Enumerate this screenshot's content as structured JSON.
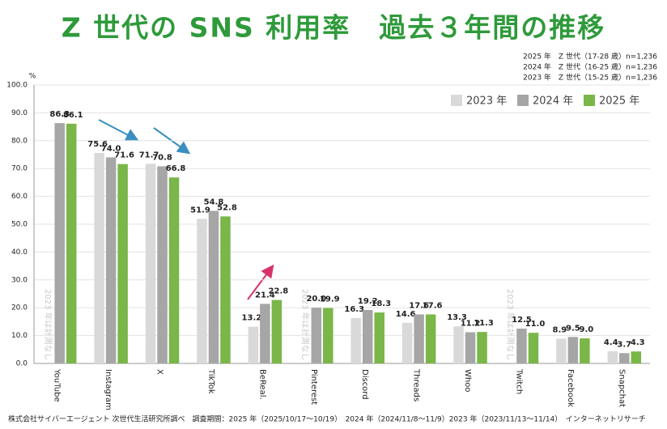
{
  "chart_data": {
    "type": "bar",
    "title": "Z 世代の SNS 利用率　過去３年間の推移",
    "unit_label": "%",
    "notes": [
      "2025 年　Z 世代（17-28 歳）n=1,236",
      "2024 年　Z 世代（16-25 歳）n=1,236",
      "2023 年　Z 世代（15-25 歳）n=1,236"
    ],
    "not_measured_label": "2023 年は計測なし",
    "footer": "株式会社サイバーエージェント 次世代生活研究所調べ　調査期間：2025 年（2025/10/17〜10/19）　2024 年（2024/11/8〜11/9）2023 年（2023/11/13〜11/14）　インターネットリサーチ",
    "categories": [
      "YouTube",
      "Instagram",
      "X",
      "TikTok",
      "BeReal.",
      "Pinterest",
      "Discord",
      "Threads",
      "Whoo",
      "Twitch",
      "Facebook",
      "Snapchat"
    ],
    "series": [
      {
        "name": "2023 年",
        "color": "#d9d9d9",
        "values": [
          null,
          75.6,
          71.7,
          51.9,
          13.2,
          null,
          16.3,
          14.6,
          13.3,
          null,
          8.9,
          4.4
        ],
        "value_labels": [
          null,
          "75.6",
          "71.7",
          "51.9",
          "13.2",
          null,
          "16.3",
          "14.6",
          "13.3",
          null,
          "8.9",
          "4.4"
        ]
      },
      {
        "name": "2024 年",
        "color": "#a6a6a6",
        "values": [
          86.3,
          74.0,
          70.8,
          54.8,
          21.4,
          20.0,
          19.2,
          17.6,
          11.2,
          12.5,
          9.5,
          3.7
        ],
        "value_labels": [
          "86.3",
          "74.0",
          "70.8",
          "54.8",
          "21.4",
          "20.0",
          "19.2",
          "17.6",
          "11.2",
          "12.5",
          "9.5",
          "3.7"
        ]
      },
      {
        "name": "2025 年",
        "color": "#7ab648",
        "values": [
          86.1,
          71.6,
          66.8,
          52.8,
          22.8,
          19.9,
          18.3,
          17.6,
          11.3,
          11.0,
          9.0,
          4.3
        ],
        "value_labels": [
          "86.1",
          "71.6",
          "66.8",
          "52.8",
          "22.8",
          "19.9",
          "18.3",
          "17.6",
          "11.3",
          "11.0",
          "9.0",
          "4.3"
        ]
      }
    ],
    "ylim": [
      0,
      100
    ],
    "yticks": [
      {
        "value": 0,
        "label": "0.0"
      },
      {
        "value": 10,
        "label": "10.0"
      },
      {
        "value": 20,
        "label": "20.0"
      },
      {
        "value": 30,
        "label": "30.0"
      },
      {
        "value": 40,
        "label": "40.0"
      },
      {
        "value": 50,
        "label": "50.0"
      },
      {
        "value": 60,
        "label": "60.0"
      },
      {
        "value": 70,
        "label": "70.0"
      },
      {
        "value": 80,
        "label": "80.0"
      },
      {
        "value": 90,
        "label": "90.0"
      },
      {
        "value": 100,
        "label": "100.0"
      }
    ],
    "grid": true,
    "legend": "top-right"
  }
}
